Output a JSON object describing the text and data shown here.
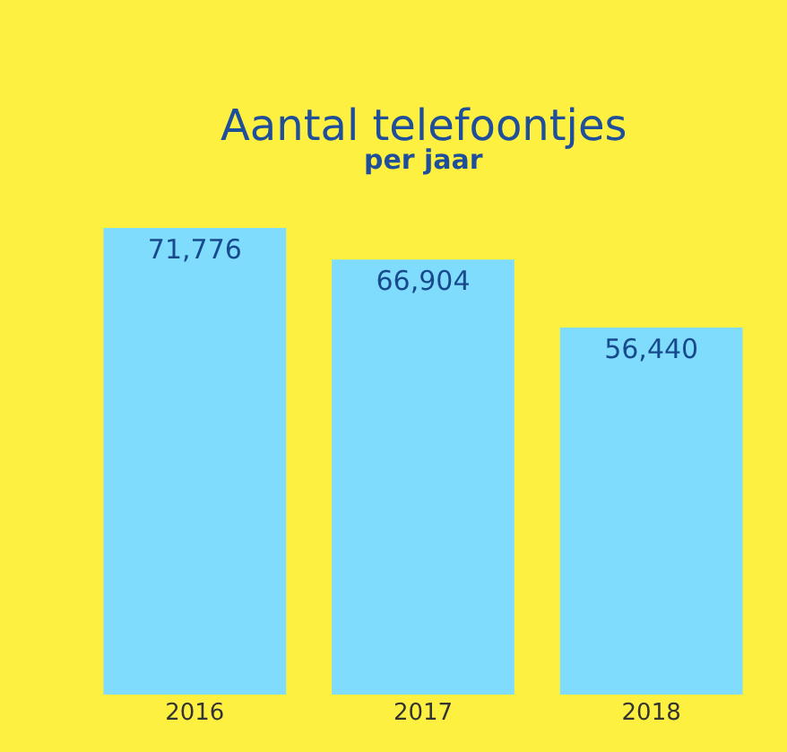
{
  "chart_data": {
    "type": "bar",
    "title": "Aantal telefoontjes",
    "subtitle": "per jaar",
    "categories": [
      "2016",
      "2017",
      "2018"
    ],
    "values": [
      71776,
      66904,
      56440
    ],
    "color": "#80dcfc",
    "value_labels": [
      "71,776",
      "66,904",
      "56,440"
    ],
    "grid": false
  }
}
